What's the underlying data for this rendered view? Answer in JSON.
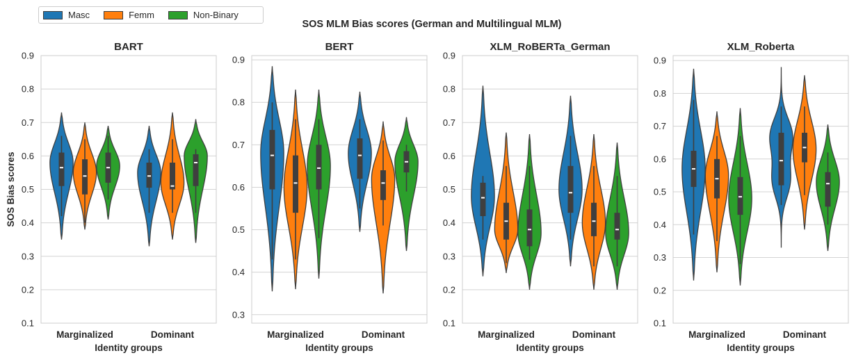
{
  "legend": {
    "items": [
      {
        "label": "Masc",
        "color": "#1f77b4"
      },
      {
        "label": "Femm",
        "color": "#ff7f0e"
      },
      {
        "label": "Non-Binary",
        "color": "#2ca02c"
      }
    ]
  },
  "suptitle": "SOS MLM Bias scores (German and Multilingual MLM)",
  "chart_data": [
    {
      "type": "violin",
      "title": "BART",
      "xlabel": "Identity groups",
      "ylabel": "SOS Bias scores",
      "categories": [
        "Marginalized",
        "Dominant"
      ],
      "series_names": [
        "Masc",
        "Femm",
        "Non-Binary"
      ],
      "ylim": [
        0.1,
        0.9
      ],
      "yticks": [
        0.1,
        0.2,
        0.3,
        0.4,
        0.5,
        0.6,
        0.7,
        0.8,
        0.9
      ],
      "grid": "y",
      "violins": [
        {
          "category": "Marginalized",
          "series": "Masc",
          "min": 0.35,
          "max": 0.73,
          "q1": 0.51,
          "median": 0.565,
          "q3": 0.61,
          "wlo": 0.42,
          "whi": 0.66,
          "mode": 0.58,
          "shape": "normal"
        },
        {
          "category": "Marginalized",
          "series": "Femm",
          "min": 0.38,
          "max": 0.7,
          "q1": 0.485,
          "median": 0.54,
          "q3": 0.59,
          "wlo": 0.4,
          "whi": 0.65,
          "mode": 0.55,
          "shape": "normal"
        },
        {
          "category": "Marginalized",
          "series": "Non-Binary",
          "min": 0.41,
          "max": 0.69,
          "q1": 0.52,
          "median": 0.565,
          "q3": 0.61,
          "wlo": 0.47,
          "whi": 0.66,
          "mode": 0.57,
          "shape": "normal"
        },
        {
          "category": "Dominant",
          "series": "Masc",
          "min": 0.33,
          "max": 0.69,
          "q1": 0.505,
          "median": 0.54,
          "q3": 0.58,
          "wlo": 0.43,
          "whi": 0.62,
          "mode": 0.55,
          "shape": "normal"
        },
        {
          "category": "Dominant",
          "series": "Femm",
          "min": 0.35,
          "max": 0.73,
          "q1": 0.5,
          "median": 0.51,
          "q3": 0.58,
          "wlo": 0.43,
          "whi": 0.65,
          "mode": 0.52,
          "shape": "normal"
        },
        {
          "category": "Dominant",
          "series": "Non-Binary",
          "min": 0.34,
          "max": 0.71,
          "q1": 0.51,
          "median": 0.58,
          "q3": 0.605,
          "wlo": 0.43,
          "whi": 0.62,
          "mode": 0.6,
          "shape": "normal"
        }
      ]
    },
    {
      "type": "violin",
      "title": "BERT",
      "xlabel": "Identity groups",
      "ylabel": "",
      "categories": [
        "Marginalized",
        "Dominant"
      ],
      "series_names": [
        "Masc",
        "Femm",
        "Non-Binary"
      ],
      "ylim": [
        0.28,
        0.91
      ],
      "yticks": [
        0.3,
        0.4,
        0.5,
        0.6,
        0.7,
        0.8,
        0.9
      ],
      "grid": "y",
      "violins": [
        {
          "category": "Marginalized",
          "series": "Masc",
          "min": 0.355,
          "max": 0.885,
          "q1": 0.595,
          "median": 0.675,
          "q3": 0.735,
          "wlo": 0.43,
          "whi": 0.8,
          "mode": 0.68,
          "shape": "normal"
        },
        {
          "category": "Marginalized",
          "series": "Femm",
          "min": 0.36,
          "max": 0.83,
          "q1": 0.54,
          "median": 0.61,
          "q3": 0.675,
          "wlo": 0.43,
          "whi": 0.76,
          "mode": 0.6,
          "shape": "normal"
        },
        {
          "category": "Marginalized",
          "series": "Non-Binary",
          "min": 0.385,
          "max": 0.83,
          "q1": 0.595,
          "median": 0.645,
          "q3": 0.7,
          "wlo": 0.48,
          "whi": 0.76,
          "mode": 0.65,
          "shape": "normal"
        },
        {
          "category": "Dominant",
          "series": "Masc",
          "min": 0.495,
          "max": 0.825,
          "q1": 0.62,
          "median": 0.675,
          "q3": 0.715,
          "wlo": 0.55,
          "whi": 0.76,
          "mode": 0.68,
          "shape": "normal"
        },
        {
          "category": "Dominant",
          "series": "Femm",
          "min": 0.35,
          "max": 0.755,
          "q1": 0.57,
          "median": 0.61,
          "q3": 0.64,
          "wlo": 0.51,
          "whi": 0.71,
          "mode": 0.62,
          "shape": "normal"
        },
        {
          "category": "Dominant",
          "series": "Non-Binary",
          "min": 0.45,
          "max": 0.765,
          "q1": 0.635,
          "median": 0.66,
          "q3": 0.685,
          "wlo": 0.59,
          "whi": 0.7,
          "mode": 0.66,
          "shape": "normal"
        }
      ]
    },
    {
      "type": "violin",
      "title": "XLM_RoBERTa_German",
      "xlabel": "Identity groups",
      "ylabel": "",
      "categories": [
        "Marginalized",
        "Dominant"
      ],
      "series_names": [
        "Masc",
        "Femm",
        "Non-Binary"
      ],
      "ylim": [
        0.1,
        0.9
      ],
      "yticks": [
        0.1,
        0.2,
        0.3,
        0.4,
        0.5,
        0.6,
        0.7,
        0.8,
        0.9
      ],
      "grid": "y",
      "violins": [
        {
          "category": "Marginalized",
          "series": "Masc",
          "min": 0.24,
          "max": 0.81,
          "q1": 0.42,
          "median": 0.475,
          "q3": 0.52,
          "wlo": 0.35,
          "whi": 0.54,
          "mode": 0.48,
          "shape": "normal"
        },
        {
          "category": "Marginalized",
          "series": "Femm",
          "min": 0.25,
          "max": 0.67,
          "q1": 0.35,
          "median": 0.405,
          "q3": 0.46,
          "wlo": 0.28,
          "whi": 0.57,
          "mode": 0.38,
          "shape": "normal"
        },
        {
          "category": "Marginalized",
          "series": "Non-Binary",
          "min": 0.2,
          "max": 0.665,
          "q1": 0.33,
          "median": 0.38,
          "q3": 0.44,
          "wlo": 0.29,
          "whi": 0.57,
          "mode": 0.37,
          "shape": "normal"
        },
        {
          "category": "Dominant",
          "series": "Masc",
          "min": 0.27,
          "max": 0.78,
          "q1": 0.43,
          "median": 0.49,
          "q3": 0.57,
          "wlo": 0.35,
          "whi": 0.66,
          "mode": 0.5,
          "shape": "normal"
        },
        {
          "category": "Dominant",
          "series": "Femm",
          "min": 0.2,
          "max": 0.665,
          "q1": 0.36,
          "median": 0.405,
          "q3": 0.46,
          "wlo": 0.27,
          "whi": 0.57,
          "mode": 0.4,
          "shape": "normal"
        },
        {
          "category": "Dominant",
          "series": "Non-Binary",
          "min": 0.2,
          "max": 0.64,
          "q1": 0.35,
          "median": 0.38,
          "q3": 0.43,
          "wlo": 0.27,
          "whi": 0.54,
          "mode": 0.37,
          "shape": "normal"
        }
      ]
    },
    {
      "type": "violin",
      "title": "XLM_Roberta",
      "xlabel": "Identity groups",
      "ylabel": "",
      "categories": [
        "Marginalized",
        "Dominant"
      ],
      "series_names": [
        "Masc",
        "Femm",
        "Non-Binary"
      ],
      "ylim": [
        0.1,
        0.915
      ],
      "yticks": [
        0.1,
        0.2,
        0.3,
        0.4,
        0.5,
        0.6,
        0.7,
        0.8,
        0.9
      ],
      "grid": "y",
      "violins": [
        {
          "category": "Marginalized",
          "series": "Masc",
          "min": 0.23,
          "max": 0.875,
          "q1": 0.515,
          "median": 0.57,
          "q3": 0.625,
          "wlo": 0.37,
          "whi": 0.78,
          "mode": 0.57,
          "shape": "normal"
        },
        {
          "category": "Marginalized",
          "series": "Femm",
          "min": 0.255,
          "max": 0.745,
          "q1": 0.48,
          "median": 0.54,
          "q3": 0.6,
          "wlo": 0.35,
          "whi": 0.67,
          "mode": 0.55,
          "shape": "normal"
        },
        {
          "category": "Marginalized",
          "series": "Non-Binary",
          "min": 0.215,
          "max": 0.755,
          "q1": 0.43,
          "median": 0.485,
          "q3": 0.545,
          "wlo": 0.28,
          "whi": 0.67,
          "mode": 0.48,
          "shape": "normal"
        },
        {
          "category": "Dominant",
          "series": "Masc",
          "min": 0.33,
          "max": 0.88,
          "q1": 0.52,
          "median": 0.595,
          "q3": 0.68,
          "wlo": 0.46,
          "whi": 0.76,
          "mode": 0.62,
          "shape": "bimodal"
        },
        {
          "category": "Dominant",
          "series": "Femm",
          "min": 0.385,
          "max": 0.855,
          "q1": 0.59,
          "median": 0.635,
          "q3": 0.68,
          "wlo": 0.49,
          "whi": 0.76,
          "mode": 0.63,
          "shape": "normal"
        },
        {
          "category": "Dominant",
          "series": "Non-Binary",
          "min": 0.32,
          "max": 0.705,
          "q1": 0.455,
          "median": 0.525,
          "q3": 0.56,
          "wlo": 0.4,
          "whi": 0.62,
          "mode": 0.53,
          "shape": "normal"
        }
      ]
    }
  ]
}
